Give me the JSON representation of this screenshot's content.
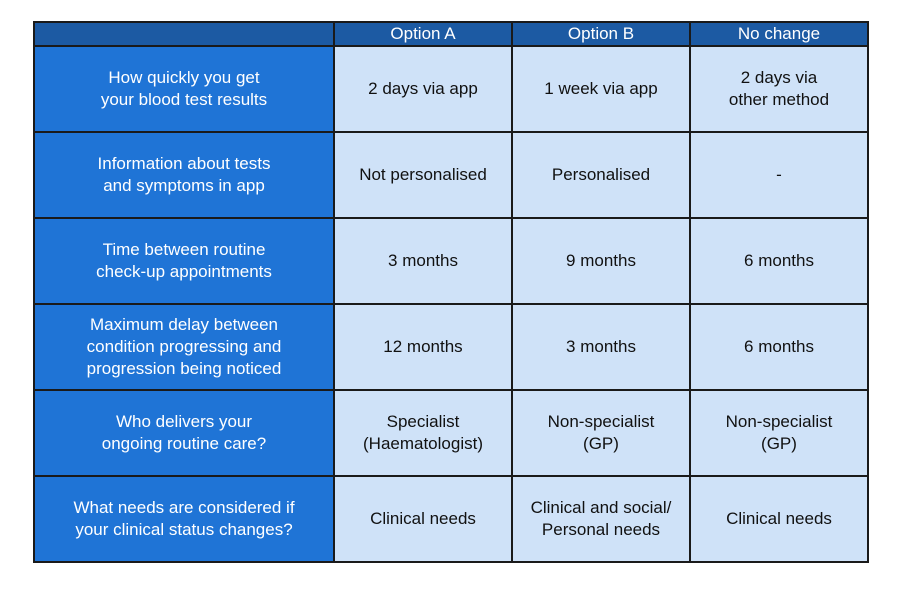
{
  "table": {
    "columns": [
      "",
      "Option A",
      "Option B",
      "No change"
    ],
    "rows": [
      {
        "attribute": [
          "How quickly you get",
          "your blood test results"
        ],
        "option_a": [
          "2 days via app"
        ],
        "option_b": [
          "1 week via app"
        ],
        "no_change": [
          "2 days via",
          "other method"
        ]
      },
      {
        "attribute": [
          "Information about tests",
          "and symptoms in app"
        ],
        "option_a": [
          "Not personalised"
        ],
        "option_b": [
          "Personalised"
        ],
        "no_change": [
          "-"
        ]
      },
      {
        "attribute": [
          "Time between routine",
          "check-up appointments"
        ],
        "option_a": [
          "3 months"
        ],
        "option_b": [
          "9 months"
        ],
        "no_change": [
          "6 months"
        ]
      },
      {
        "attribute": [
          "Maximum delay between",
          "condition progressing and",
          "progression being noticed"
        ],
        "option_a": [
          "12 months"
        ],
        "option_b": [
          "3 months"
        ],
        "no_change": [
          "6 months"
        ]
      },
      {
        "attribute": [
          "Who delivers your",
          "ongoing routine care?"
        ],
        "option_a": [
          "Specialist",
          "(Haematologist)"
        ],
        "option_b": [
          "Non-specialist",
          "(GP)"
        ],
        "no_change": [
          "Non-specialist",
          "(GP)"
        ]
      },
      {
        "attribute": [
          "What needs are considered if",
          "your clinical status changes?"
        ],
        "option_a": [
          "Clinical needs"
        ],
        "option_b": [
          "Clinical and social/",
          "Personal needs"
        ],
        "no_change": [
          "Clinical needs"
        ]
      }
    ]
  },
  "colors": {
    "header_bg": "#1c5aa3",
    "attribute_bg": "#1f74d6",
    "value_bg": "#cfe2f8",
    "border": "#1a1a1a"
  }
}
